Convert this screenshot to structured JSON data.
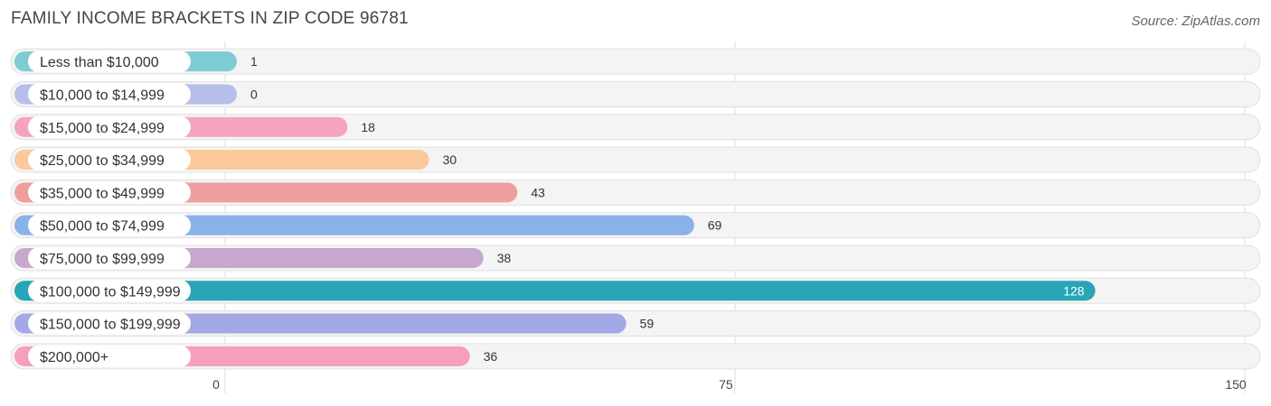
{
  "header": {
    "title": "FAMILY INCOME BRACKETS IN ZIP CODE 96781",
    "source": "Source: ZipAtlas.com"
  },
  "chart_data": {
    "type": "bar",
    "orientation": "horizontal",
    "categories": [
      "Less than $10,000",
      "$10,000 to $14,999",
      "$15,000 to $24,999",
      "$25,000 to $34,999",
      "$35,000 to $49,999",
      "$50,000 to $74,999",
      "$75,000 to $99,999",
      "$100,000 to $149,999",
      "$150,000 to $199,999",
      "$200,000+"
    ],
    "values": [
      1,
      0,
      18,
      30,
      43,
      69,
      38,
      128,
      59,
      36
    ],
    "colors": [
      "#7fcbd3",
      "#b6bfea",
      "#f6a3bf",
      "#fbc99a",
      "#ee9f9d",
      "#89b2e6",
      "#c6a7cd",
      "#28a5b6",
      "#a2a9e6",
      "#f59ebd"
    ],
    "highlight_index": 7,
    "xlim": [
      0,
      150
    ],
    "xticks": [
      "0",
      "75",
      "150"
    ],
    "grid": true,
    "legend": "none"
  }
}
